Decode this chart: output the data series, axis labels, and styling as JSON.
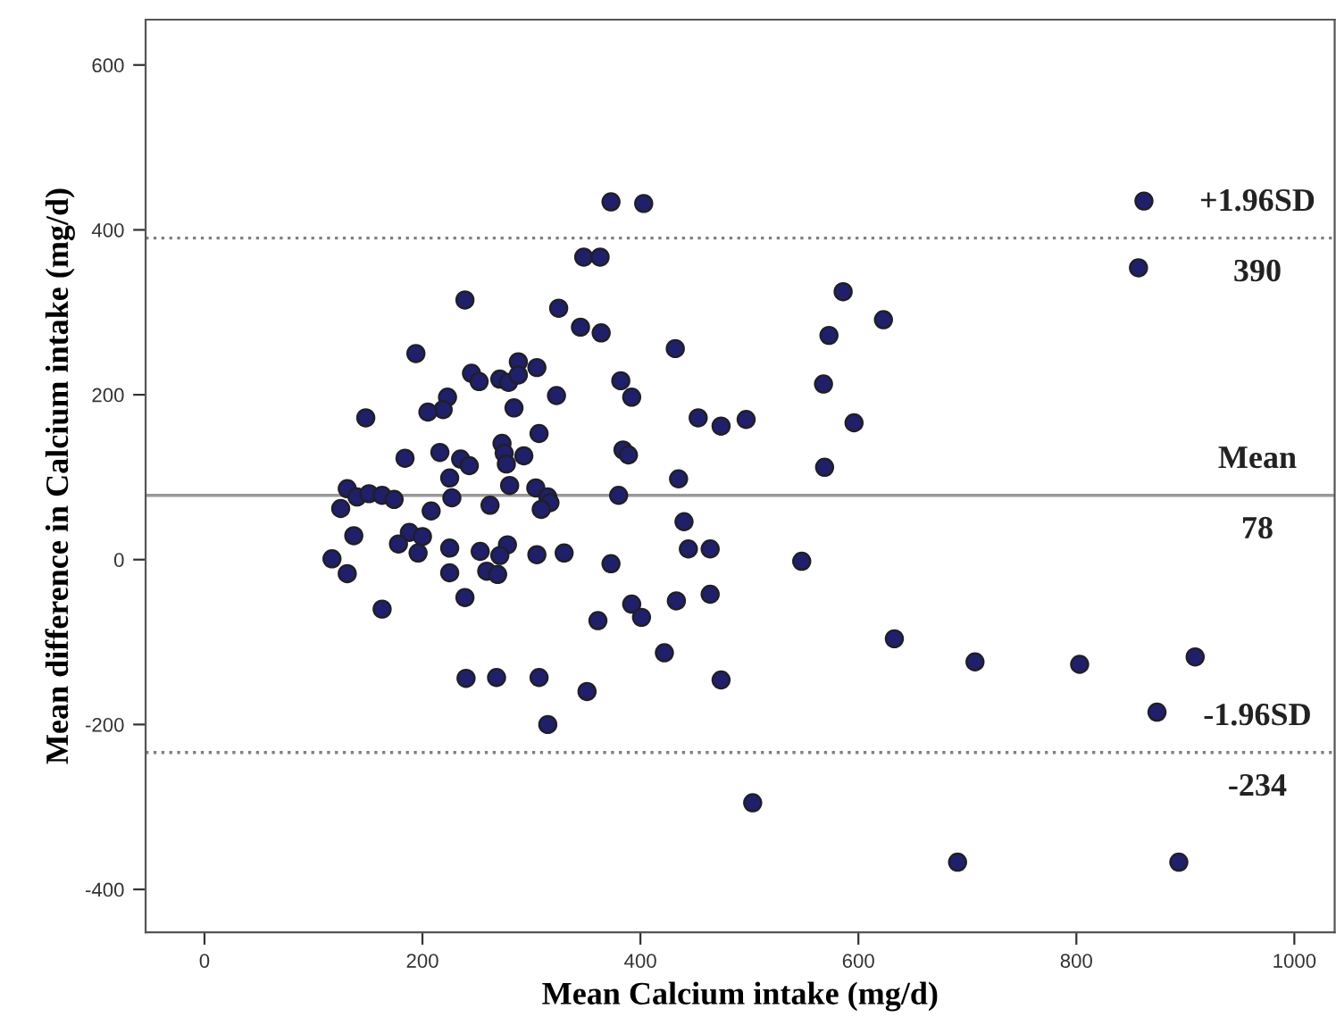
{
  "chart_data": {
    "type": "scatter",
    "xlabel": "Mean Calcium intake (mg/d)",
    "ylabel": "Mean difference in Calcium intake (mg/d)",
    "xlim": [
      -54,
      1037
    ],
    "ylim": [
      -452,
      655
    ],
    "xticks": [
      0,
      200,
      400,
      600,
      800,
      1000
    ],
    "yticks": [
      -400,
      -200,
      0,
      200,
      400,
      600
    ],
    "grid": false,
    "marker": "circle",
    "annotations": [
      "390",
      "78",
      "-234"
    ],
    "ref_lines": [
      {
        "axis": "y",
        "value": 390,
        "label": "+1.96SD",
        "line_style": "dotted",
        "color": "#808080"
      },
      {
        "axis": "y",
        "value": 78,
        "label": "Mean",
        "line_style": "solid",
        "color": "#999999"
      },
      {
        "axis": "y",
        "value": -234,
        "label": "-1.96SD",
        "line_style": "dotted",
        "color": "#808080"
      }
    ],
    "series": [
      {
        "color": "#1f1f6b",
        "x": [
          239,
          325,
          345,
          364,
          194,
          245,
          252,
          271,
          279,
          288,
          288,
          305,
          223,
          219,
          205,
          323,
          284,
          148,
          307,
          273,
          275,
          293,
          277,
          184,
          216,
          235,
          243,
          225,
          131,
          140,
          151,
          163,
          174,
          125,
          227,
          208,
          262,
          280,
          304,
          315,
          317,
          309,
          137,
          188,
          200,
          178,
          196,
          225,
          253,
          278,
          271,
          305,
          330,
          117,
          131,
          225,
          259,
          269,
          239,
          163,
          373,
          361,
          382,
          384,
          389,
          380,
          373,
          403,
          348,
          363,
          432,
          586,
          573,
          623,
          568,
          596,
          453,
          474,
          497,
          392,
          569,
          435,
          862,
          857,
          440,
          444,
          464,
          392,
          401,
          433,
          464,
          422,
          474,
          548,
          240,
          268,
          307,
          351,
          315,
          633,
          707,
          503,
          691,
          803,
          909,
          874,
          894
        ],
        "values": [
          315,
          305,
          282,
          275,
          250,
          226,
          216,
          219,
          215,
          240,
          224,
          233,
          197,
          182,
          179,
          199,
          184,
          172,
          153,
          141,
          129,
          126,
          116,
          123,
          130,
          122,
          114,
          99,
          86,
          76,
          80,
          78,
          73,
          62,
          75,
          59,
          66,
          90,
          87,
          76,
          69,
          61,
          29,
          33,
          28,
          19,
          8,
          14,
          10,
          18,
          5,
          6,
          8,
          1,
          -17,
          -16,
          -14,
          -18,
          -46,
          -60,
          -5,
          -74,
          217,
          133,
          127,
          78,
          434,
          432,
          367,
          367,
          256,
          325,
          272,
          291,
          213,
          166,
          172,
          162,
          170,
          197,
          112,
          98,
          435,
          354,
          46,
          13,
          13,
          -54,
          -70,
          -50,
          -42,
          -113,
          -146,
          -2,
          -144,
          -143,
          -143,
          -160,
          -200,
          -96,
          -124,
          -295,
          -367,
          -127,
          -118,
          -185,
          -367
        ]
      }
    ]
  }
}
